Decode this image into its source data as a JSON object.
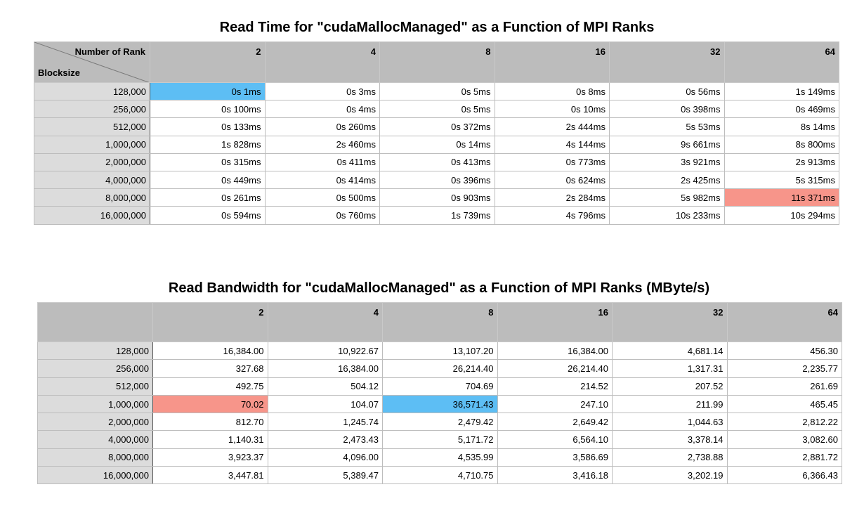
{
  "chart_data": [
    {
      "type": "table",
      "title": "Read Time for \"cudaMallocManaged\" as a Function of MPI Ranks",
      "corner_top_label": "Number of Rank",
      "corner_bottom_label": "Blocksize",
      "columns": [
        "2",
        "4",
        "8",
        "16",
        "32",
        "64"
      ],
      "rows": [
        {
          "label": "128,000",
          "cells": [
            "0s 1ms",
            "0s 3ms",
            "0s 5ms",
            "0s 8ms",
            "0s 56ms",
            "1s 149ms"
          ]
        },
        {
          "label": "256,000",
          "cells": [
            "0s 100ms",
            "0s 4ms",
            "0s 5ms",
            "0s 10ms",
            "0s 398ms",
            "0s 469ms"
          ]
        },
        {
          "label": "512,000",
          "cells": [
            "0s 133ms",
            "0s 260ms",
            "0s 372ms",
            "2s 444ms",
            "5s 53ms",
            "8s 14ms"
          ]
        },
        {
          "label": "1,000,000",
          "cells": [
            "1s 828ms",
            "2s 460ms",
            "0s 14ms",
            "4s 144ms",
            "9s 661ms",
            "8s 800ms"
          ]
        },
        {
          "label": "2,000,000",
          "cells": [
            "0s 315ms",
            "0s 411ms",
            "0s 413ms",
            "0s 773ms",
            "3s 921ms",
            "2s 913ms"
          ]
        },
        {
          "label": "4,000,000",
          "cells": [
            "0s 449ms",
            "0s 414ms",
            "0s 396ms",
            "0s 624ms",
            "2s 425ms",
            "5s 315ms"
          ]
        },
        {
          "label": "8,000,000",
          "cells": [
            "0s 261ms",
            "0s 500ms",
            "0s 903ms",
            "2s 284ms",
            "5s 982ms",
            "11s 371ms"
          ]
        },
        {
          "label": "16,000,000",
          "cells": [
            "0s 594ms",
            "0s 760ms",
            "1s 739ms",
            "4s 796ms",
            "10s 233ms",
            "10s 294ms"
          ]
        }
      ],
      "highlights": [
        {
          "row": 0,
          "col": 0,
          "color": "#5dbef4"
        },
        {
          "row": 6,
          "col": 5,
          "color": "#f7958a"
        }
      ]
    },
    {
      "type": "table",
      "title": "Read Bandwidth for \"cudaMallocManaged\" as a Function of MPI Ranks (MByte/s)",
      "corner_top_label": "",
      "corner_bottom_label": "",
      "columns": [
        "2",
        "4",
        "8",
        "16",
        "32",
        "64"
      ],
      "rows": [
        {
          "label": "128,000",
          "cells": [
            "16,384.00",
            "10,922.67",
            "13,107.20",
            "16,384.00",
            "4,681.14",
            "456.30"
          ]
        },
        {
          "label": "256,000",
          "cells": [
            "327.68",
            "16,384.00",
            "26,214.40",
            "26,214.40",
            "1,317.31",
            "2,235.77"
          ]
        },
        {
          "label": "512,000",
          "cells": [
            "492.75",
            "504.12",
            "704.69",
            "214.52",
            "207.52",
            "261.69"
          ]
        },
        {
          "label": "1,000,000",
          "cells": [
            "70.02",
            "104.07",
            "36,571.43",
            "247.10",
            "211.99",
            "465.45"
          ]
        },
        {
          "label": "2,000,000",
          "cells": [
            "812.70",
            "1,245.74",
            "2,479.42",
            "2,649.42",
            "1,044.63",
            "2,812.22"
          ]
        },
        {
          "label": "4,000,000",
          "cells": [
            "1,140.31",
            "2,473.43",
            "5,171.72",
            "6,564.10",
            "3,378.14",
            "3,082.60"
          ]
        },
        {
          "label": "8,000,000",
          "cells": [
            "3,923.37",
            "4,096.00",
            "4,535.99",
            "3,586.69",
            "2,738.88",
            "2,881.72"
          ]
        },
        {
          "label": "16,000,000",
          "cells": [
            "3,447.81",
            "5,389.47",
            "4,710.75",
            "3,416.18",
            "3,202.19",
            "6,366.43"
          ]
        }
      ],
      "highlights": [
        {
          "row": 3,
          "col": 0,
          "color": "#f7958a"
        },
        {
          "row": 3,
          "col": 2,
          "color": "#5dbef4"
        }
      ]
    }
  ]
}
